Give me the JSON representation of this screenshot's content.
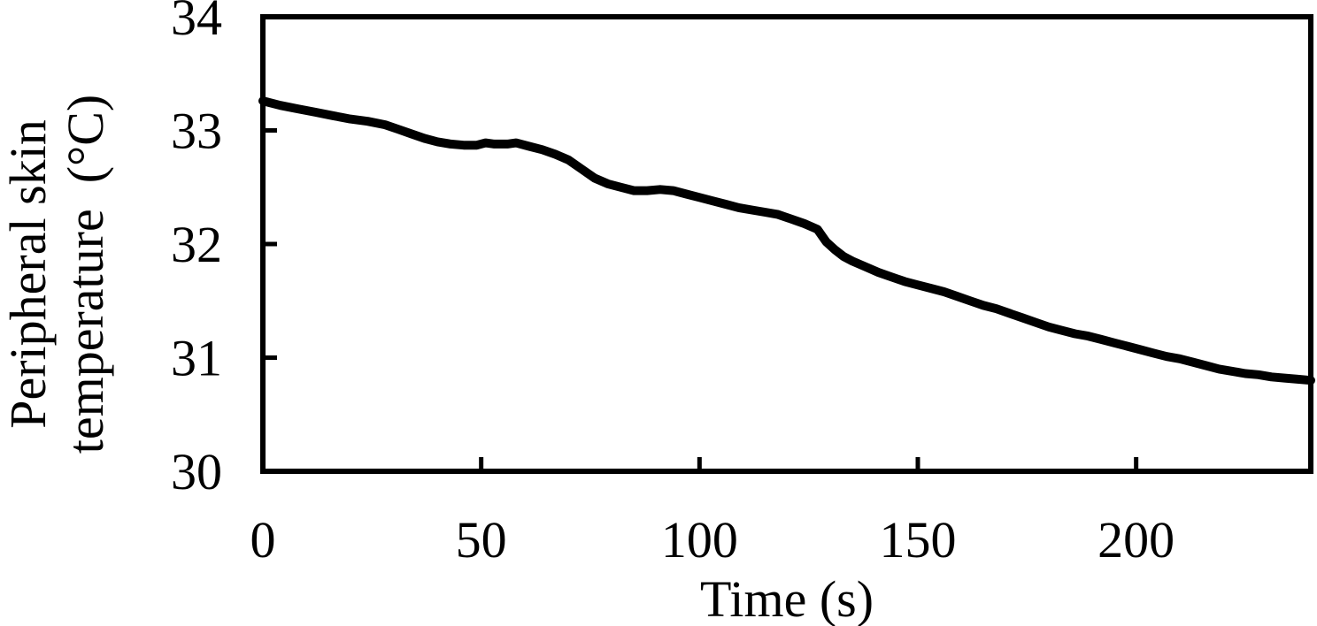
{
  "figure": {
    "background_color": "#ffffff",
    "line_color": "#000000",
    "text_color": "#000000"
  },
  "chart_data": {
    "type": "line",
    "title": "",
    "xlabel": "Time (s)",
    "ylabel": "Peripheral skin temperature (°C)",
    "ylabel_lines": [
      "Peripheral skin",
      "temperature (°C)"
    ],
    "xlim": [
      0,
      240
    ],
    "ylim": [
      30,
      34
    ],
    "x_ticks": [
      0,
      50,
      100,
      150,
      200
    ],
    "y_ticks": [
      30,
      31,
      32,
      33,
      34
    ],
    "grid": false,
    "legend": "none",
    "series": [
      {
        "name": "peripheral-skin-temperature",
        "color": "#000000",
        "x": [
          0,
          4,
          8,
          12,
          16,
          20,
          24,
          28,
          31,
          34,
          37,
          40,
          43,
          46,
          49,
          51,
          53,
          56,
          58,
          61,
          64,
          67,
          70,
          73,
          76,
          79,
          82,
          85,
          88,
          91,
          94,
          97,
          100,
          103,
          106,
          109,
          112,
          115,
          118,
          121,
          124,
          127,
          129,
          131,
          133,
          135,
          138,
          141,
          144,
          147,
          150,
          153,
          156,
          159,
          162,
          165,
          168,
          171,
          174,
          177,
          180,
          183,
          186,
          189,
          192,
          195,
          198,
          201,
          204,
          207,
          210,
          213,
          216,
          219,
          222,
          225,
          228,
          231,
          234,
          237,
          240
        ],
        "y": [
          33.26,
          33.22,
          33.19,
          33.16,
          33.13,
          33.1,
          33.08,
          33.05,
          33.01,
          32.97,
          32.93,
          32.9,
          32.88,
          32.87,
          32.87,
          32.89,
          32.88,
          32.88,
          32.89,
          32.86,
          32.83,
          32.79,
          32.74,
          32.66,
          32.58,
          32.53,
          32.5,
          32.47,
          32.47,
          32.48,
          32.47,
          32.44,
          32.41,
          32.38,
          32.35,
          32.32,
          32.3,
          32.28,
          32.26,
          32.22,
          32.18,
          32.13,
          32.02,
          31.95,
          31.89,
          31.85,
          31.8,
          31.75,
          31.71,
          31.67,
          31.64,
          31.61,
          31.58,
          31.54,
          31.5,
          31.46,
          31.43,
          31.39,
          31.35,
          31.31,
          31.27,
          31.24,
          31.21,
          31.19,
          31.16,
          31.13,
          31.1,
          31.07,
          31.04,
          31.01,
          30.99,
          30.96,
          30.93,
          30.9,
          30.88,
          30.86,
          30.85,
          30.83,
          30.82,
          30.81,
          30.8
        ]
      }
    ]
  }
}
